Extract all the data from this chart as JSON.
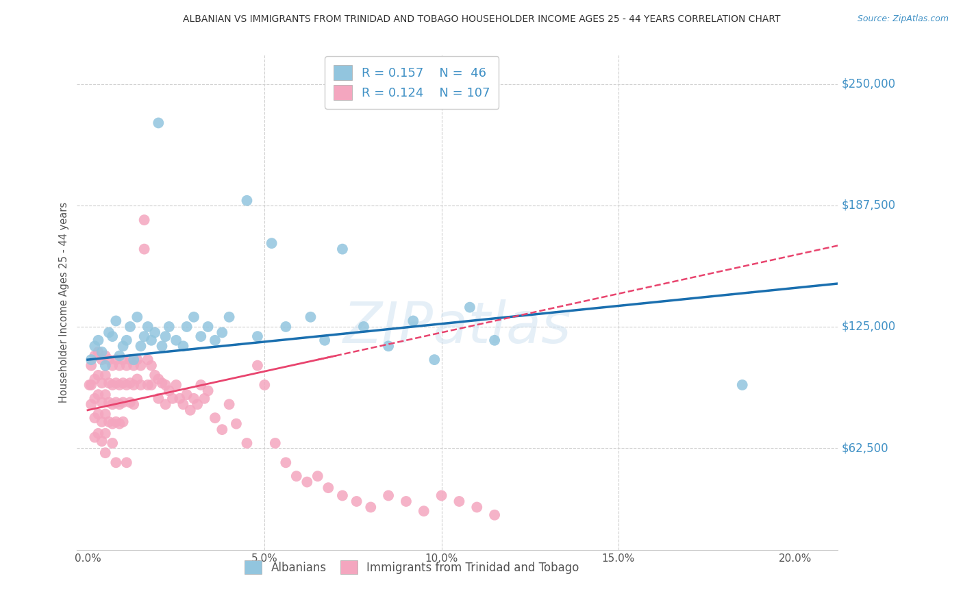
{
  "title": "ALBANIAN VS IMMIGRANTS FROM TRINIDAD AND TOBAGO HOUSEHOLDER INCOME AGES 25 - 44 YEARS CORRELATION CHART",
  "source": "Source: ZipAtlas.com",
  "ylabel": "Householder Income Ages 25 - 44 years",
  "ytick_labels": [
    "$62,500",
    "$125,000",
    "$187,500",
    "$250,000"
  ],
  "ytick_vals": [
    62500,
    125000,
    187500,
    250000
  ],
  "ylim": [
    10000,
    265000
  ],
  "xlim": [
    -0.003,
    0.212
  ],
  "legend_label1": "Albanians",
  "legend_label2": "Immigrants from Trinidad and Tobago",
  "R1": 0.157,
  "N1": 46,
  "R2": 0.124,
  "N2": 107,
  "color_blue": "#92c5de",
  "color_pink": "#f4a6bf",
  "color_blue_dark": "#1a6faf",
  "color_pink_dark": "#e8446e",
  "color_axis_vals": "#4292c6",
  "color_grid": "#d0d0d0",
  "watermark": "ZIPatlas",
  "xtick_vals": [
    0.0,
    0.05,
    0.1,
    0.15,
    0.2
  ],
  "xtick_labels": [
    "0.0%",
    "5.0%",
    "10.0%",
    "15.0%",
    "20.0%"
  ],
  "blue_x": [
    0.001,
    0.002,
    0.003,
    0.004,
    0.005,
    0.006,
    0.007,
    0.008,
    0.009,
    0.01,
    0.011,
    0.012,
    0.013,
    0.014,
    0.015,
    0.016,
    0.017,
    0.018,
    0.019,
    0.02,
    0.021,
    0.022,
    0.023,
    0.025,
    0.027,
    0.028,
    0.03,
    0.032,
    0.034,
    0.036,
    0.038,
    0.04,
    0.045,
    0.048,
    0.052,
    0.056,
    0.063,
    0.067,
    0.072,
    0.078,
    0.085,
    0.092,
    0.098,
    0.108,
    0.115,
    0.185
  ],
  "blue_y": [
    108000,
    115000,
    118000,
    112000,
    105000,
    122000,
    120000,
    128000,
    110000,
    115000,
    118000,
    125000,
    108000,
    130000,
    115000,
    120000,
    125000,
    118000,
    122000,
    230000,
    115000,
    120000,
    125000,
    118000,
    115000,
    125000,
    130000,
    120000,
    125000,
    118000,
    122000,
    130000,
    190000,
    120000,
    168000,
    125000,
    130000,
    118000,
    165000,
    125000,
    115000,
    128000,
    108000,
    135000,
    118000,
    95000
  ],
  "pink_x": [
    0.0005,
    0.001,
    0.001,
    0.001,
    0.002,
    0.002,
    0.002,
    0.002,
    0.002,
    0.003,
    0.003,
    0.003,
    0.003,
    0.003,
    0.004,
    0.004,
    0.004,
    0.004,
    0.004,
    0.005,
    0.005,
    0.005,
    0.005,
    0.005,
    0.005,
    0.006,
    0.006,
    0.006,
    0.006,
    0.007,
    0.007,
    0.007,
    0.007,
    0.007,
    0.008,
    0.008,
    0.008,
    0.008,
    0.008,
    0.009,
    0.009,
    0.009,
    0.009,
    0.01,
    0.01,
    0.01,
    0.01,
    0.011,
    0.011,
    0.011,
    0.012,
    0.012,
    0.012,
    0.013,
    0.013,
    0.013,
    0.014,
    0.014,
    0.015,
    0.015,
    0.016,
    0.016,
    0.017,
    0.017,
    0.018,
    0.018,
    0.019,
    0.02,
    0.02,
    0.021,
    0.022,
    0.022,
    0.023,
    0.024,
    0.025,
    0.026,
    0.027,
    0.028,
    0.029,
    0.03,
    0.031,
    0.032,
    0.033,
    0.034,
    0.036,
    0.038,
    0.04,
    0.042,
    0.045,
    0.048,
    0.05,
    0.053,
    0.056,
    0.059,
    0.062,
    0.065,
    0.068,
    0.072,
    0.076,
    0.08,
    0.085,
    0.09,
    0.095,
    0.1,
    0.105,
    0.11,
    0.115
  ],
  "pink_y": [
    95000,
    105000,
    95000,
    85000,
    110000,
    98000,
    88000,
    78000,
    68000,
    112000,
    100000,
    90000,
    80000,
    70000,
    108000,
    96000,
    86000,
    76000,
    66000,
    110000,
    100000,
    90000,
    80000,
    70000,
    60000,
    108000,
    96000,
    86000,
    76000,
    105000,
    95000,
    85000,
    75000,
    65000,
    108000,
    96000,
    86000,
    76000,
    55000,
    105000,
    95000,
    85000,
    75000,
    108000,
    96000,
    86000,
    76000,
    105000,
    95000,
    55000,
    108000,
    96000,
    86000,
    105000,
    95000,
    85000,
    108000,
    98000,
    105000,
    95000,
    180000,
    165000,
    108000,
    95000,
    105000,
    95000,
    100000,
    98000,
    88000,
    96000,
    95000,
    85000,
    92000,
    88000,
    95000,
    88000,
    85000,
    90000,
    82000,
    88000,
    85000,
    95000,
    88000,
    92000,
    78000,
    72000,
    85000,
    75000,
    65000,
    105000,
    95000,
    65000,
    55000,
    48000,
    45000,
    48000,
    42000,
    38000,
    35000,
    32000,
    38000,
    35000,
    30000,
    38000,
    35000,
    32000,
    28000
  ]
}
